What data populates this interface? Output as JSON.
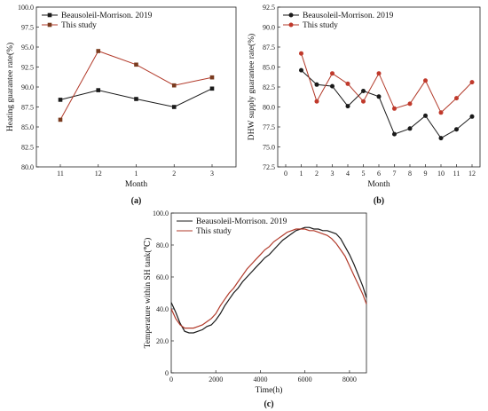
{
  "legend_labels": [
    "Beausoleil-Morrison. 2019",
    "This study"
  ],
  "colors": {
    "ref": "#1a1a1a",
    "study": "#b23a2a",
    "study_marker_a": "#7a3b1f",
    "study_marker_b": "#c0392b"
  },
  "chart_data": [
    {
      "type": "line",
      "panel_label": "(a)",
      "categories": [
        "11",
        "12",
        "1",
        "2",
        "3"
      ],
      "xlabel": "Month",
      "ylabel": "Heating guarantee rate(%)",
      "ylim": [
        80.0,
        100.0
      ],
      "yticks": [
        "80.0",
        "82.5",
        "85.0",
        "87.5",
        "90.0",
        "92.5",
        "95.0",
        "97.5",
        "100.0"
      ],
      "series": [
        {
          "name": "Beausoleil-Morrison. 2019",
          "values": [
            88.4,
            89.6,
            88.5,
            87.5,
            89.8
          ],
          "marker": "square"
        },
        {
          "name": "This study",
          "values": [
            85.9,
            94.5,
            92.8,
            90.2,
            91.2
          ],
          "marker": "square"
        }
      ],
      "legend": "top-left"
    },
    {
      "type": "line",
      "panel_label": "(b)",
      "xlabel": "Month",
      "ylabel": "DHW supply guarantee rate(%)",
      "xlim": [
        0,
        12
      ],
      "xticks": [
        "0",
        "1",
        "2",
        "3",
        "4",
        "5",
        "6",
        "7",
        "8",
        "9",
        "10",
        "11",
        "12"
      ],
      "ylim": [
        72.5,
        92.5
      ],
      "yticks": [
        "72.5",
        "75.0",
        "77.5",
        "80.0",
        "82.5",
        "85.0",
        "87.5",
        "90.0",
        "92.5"
      ],
      "x": [
        1,
        2,
        3,
        4,
        5,
        6,
        7,
        8,
        9,
        10,
        11,
        12
      ],
      "series": [
        {
          "name": "Beausoleil-Morrison. 2019",
          "values": [
            84.6,
            82.8,
            82.6,
            80.1,
            82.0,
            81.3,
            76.6,
            77.3,
            78.9,
            76.1,
            77.2,
            78.8
          ],
          "marker": "circle"
        },
        {
          "name": "This study",
          "values": [
            86.7,
            80.7,
            84.2,
            82.9,
            80.7,
            84.2,
            79.8,
            80.4,
            83.3,
            79.3,
            81.1,
            83.1
          ],
          "marker": "circle"
        }
      ],
      "legend": "top-left"
    },
    {
      "type": "line",
      "panel_label": "(c)",
      "xlabel": "Time(h)",
      "ylabel": "Temperature within SH tank(℃)",
      "xlim": [
        0,
        8760
      ],
      "xticks": [
        "0",
        "2000",
        "4000",
        "6000",
        "8000"
      ],
      "ylim": [
        0,
        100
      ],
      "yticks": [
        "0",
        "20.0",
        "40.0",
        "60.0",
        "80.0",
        "100.0"
      ],
      "series": [
        {
          "name": "Beausoleil-Morrison. 2019",
          "x": [
            0,
            200,
            400,
            600,
            800,
            1000,
            1200,
            1400,
            1600,
            1800,
            2000,
            2200,
            2400,
            2600,
            2800,
            3000,
            3200,
            3400,
            3600,
            3800,
            4000,
            4200,
            4400,
            4600,
            4800,
            5000,
            5200,
            5400,
            5600,
            5800,
            6000,
            6200,
            6400,
            6600,
            6800,
            7000,
            7200,
            7400,
            7600,
            7800,
            8000,
            8200,
            8400,
            8600,
            8760
          ],
          "values": [
            44,
            38,
            31,
            26,
            25,
            25,
            26,
            27,
            29,
            30,
            33,
            37,
            42,
            46,
            50,
            53,
            57,
            60,
            63,
            66,
            69,
            72,
            74,
            77,
            80,
            83,
            85,
            87,
            89,
            90,
            91,
            91,
            90,
            90,
            89,
            89,
            88,
            87,
            84,
            79,
            74,
            68,
            61,
            54,
            47
          ]
        },
        {
          "name": "This study",
          "x": [
            0,
            200,
            400,
            600,
            800,
            1000,
            1200,
            1400,
            1600,
            1800,
            2000,
            2200,
            2400,
            2600,
            2800,
            3000,
            3200,
            3400,
            3600,
            3800,
            4000,
            4200,
            4400,
            4600,
            4800,
            5000,
            5200,
            5400,
            5600,
            5800,
            6000,
            6200,
            6400,
            6600,
            6800,
            7000,
            7200,
            7400,
            7600,
            7800,
            8000,
            8200,
            8400,
            8600,
            8760
          ],
          "values": [
            40,
            34,
            30,
            28,
            28,
            28,
            29,
            30,
            32,
            34,
            37,
            42,
            46,
            50,
            53,
            57,
            61,
            65,
            68,
            71,
            74,
            77,
            79,
            82,
            84,
            86,
            88,
            89,
            90,
            90,
            90,
            89,
            89,
            88,
            87,
            86,
            84,
            81,
            77,
            73,
            67,
            61,
            55,
            49,
            43
          ]
        }
      ],
      "legend": "top-left"
    }
  ]
}
